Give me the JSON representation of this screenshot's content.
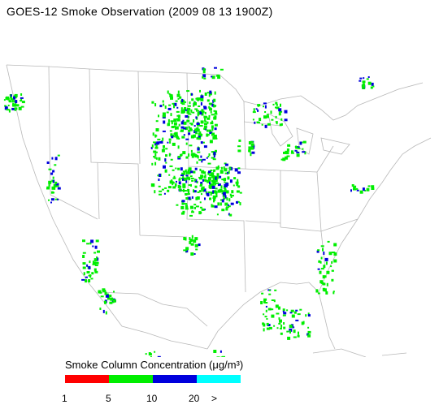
{
  "title": "GOES-12 Smoke Observation (2009 08 13  1900Z)",
  "legend": {
    "title": "Smoke Column Concentration (μg/m³)",
    "bins": [
      {
        "color": "#ff0000",
        "from": "1",
        "to": "5"
      },
      {
        "color": "#00ee00",
        "from": "5",
        "to": "10"
      },
      {
        "color": "#0000dd",
        "from": "10",
        "to": "20"
      },
      {
        "color": "#00ffff",
        "from": "20",
        "to": ">"
      }
    ],
    "ticks": [
      "1",
      "5",
      "10",
      "20",
      ">"
    ]
  },
  "colors": {
    "boundary": "#b8b8b8",
    "bin_5_10": "#00ee00",
    "bin_10_20": "#0000dd"
  }
}
